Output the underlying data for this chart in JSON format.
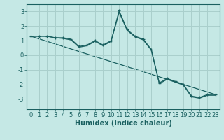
{
  "xlabel": "Humidex (Indice chaleur)",
  "background_color": "#c5e8e5",
  "grid_color": "#aacfcc",
  "line_color": "#1a6060",
  "xlim": [
    -0.5,
    23.5
  ],
  "ylim": [
    -3.7,
    3.5
  ],
  "yticks": [
    -3,
    -2,
    -1,
    0,
    1,
    2,
    3
  ],
  "xticks": [
    0,
    1,
    2,
    3,
    4,
    5,
    6,
    7,
    8,
    9,
    10,
    11,
    12,
    13,
    14,
    15,
    16,
    17,
    18,
    19,
    20,
    21,
    22,
    23
  ],
  "line1_x": [
    0,
    1,
    2,
    3,
    4,
    5,
    6,
    7,
    8,
    9,
    10,
    11,
    12,
    13,
    14,
    15,
    16,
    17,
    18,
    19,
    20,
    21,
    22,
    23
  ],
  "line1_y": [
    1.3,
    1.3,
    1.3,
    1.2,
    1.2,
    1.1,
    0.6,
    0.7,
    1.0,
    0.7,
    1.0,
    3.05,
    1.75,
    1.3,
    1.1,
    0.4,
    -1.9,
    -1.6,
    -1.8,
    -2.0,
    -2.8,
    -2.9,
    -2.7,
    -2.7
  ],
  "line2_x": [
    0,
    1,
    2,
    3,
    4,
    5,
    6,
    7,
    8,
    9,
    10,
    11,
    12,
    13,
    14,
    15,
    16,
    17,
    18,
    19,
    20,
    21,
    22,
    23
  ],
  "line2_y": [
    1.3,
    1.3,
    1.3,
    1.2,
    1.15,
    1.05,
    0.55,
    0.65,
    0.95,
    0.65,
    0.95,
    2.95,
    1.7,
    1.25,
    1.05,
    0.35,
    -1.95,
    -1.65,
    -1.85,
    -2.05,
    -2.85,
    -2.95,
    -2.75,
    -2.75
  ],
  "line3_x": [
    0,
    23
  ],
  "line3_y": [
    1.3,
    -2.7
  ],
  "xlabel_fontsize": 7,
  "tick_fontsize": 6
}
